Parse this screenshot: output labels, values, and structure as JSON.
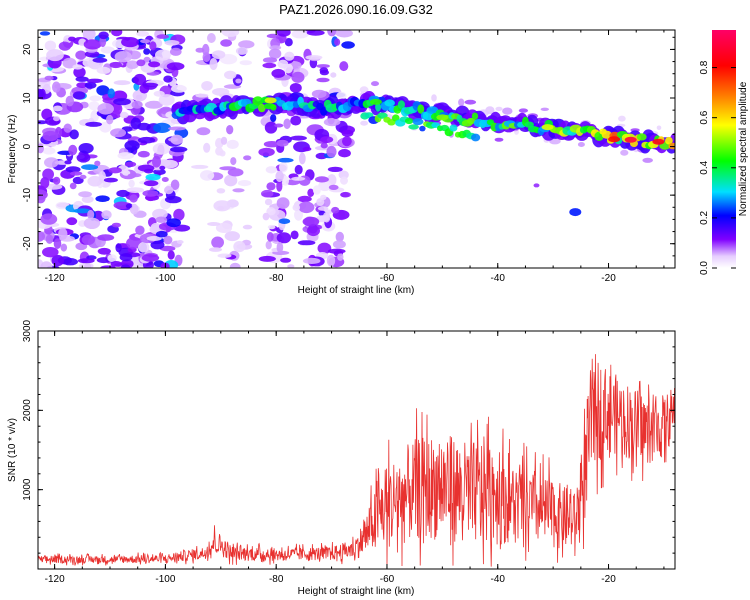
{
  "chart_data": [
    {
      "type": "heatmap",
      "title": "PAZ1.2026.090.16.09.G32",
      "xlabel": "Height of straight line (km)",
      "ylabel": "Frequency (Hz)",
      "xlim": [
        -123,
        -8
      ],
      "ylim": [
        -25,
        24
      ],
      "xticks": [
        -120,
        -100,
        -80,
        -60,
        -40,
        -20
      ],
      "xtick_labels": [
        "-120",
        "-100",
        "-80",
        "-60",
        "-40",
        "-20"
      ],
      "yticks": [
        -20,
        -10,
        0,
        10,
        20
      ],
      "ytick_labels": [
        "-20",
        "-10",
        "0",
        "10",
        "20"
      ],
      "ridge": {
        "description": "dominant signal frequency track",
        "x": [
          -98,
          -90,
          -80,
          -72,
          -62,
          -52,
          -42,
          -32,
          -22,
          -12,
          -8
        ],
        "y": [
          7,
          8,
          9,
          8,
          9,
          7,
          5,
          4,
          2.5,
          1,
          0.5
        ],
        "amplitude": [
          0.35,
          0.45,
          0.55,
          0.4,
          0.45,
          0.55,
          0.5,
          0.55,
          0.7,
          0.9,
          0.7
        ]
      },
      "noise_regions": [
        {
          "x": [
            -123,
            -97
          ],
          "amplitude": 0.18
        },
        {
          "x": [
            -94,
            -85
          ],
          "amplitude": 0.08
        },
        {
          "x": [
            -82,
            -67
          ],
          "amplitude": 0.15
        }
      ],
      "colorbar": {
        "label": "Normalized spectral amplitude",
        "range": [
          0,
          0.95
        ],
        "ticks": [
          0.0,
          0.2,
          0.4,
          0.6,
          0.8
        ],
        "tick_labels": [
          "0.0",
          "0.2",
          "0.4",
          "0.6",
          "0.8"
        ]
      }
    },
    {
      "type": "line",
      "title": "",
      "xlabel": "Height of straight line (km)",
      "ylabel": "SNR (10 * v/v)",
      "xlim": [
        -123,
        -8
      ],
      "ylim": [
        0,
        3000
      ],
      "xticks": [
        -120,
        -100,
        -80,
        -60,
        -40,
        -20
      ],
      "xtick_labels": [
        "-120",
        "-100",
        "-80",
        "-60",
        "-40",
        "-20"
      ],
      "yticks": [
        1000,
        2000,
        3000
      ],
      "ytick_labels": [
        "1000",
        "2000",
        "3000"
      ],
      "series": [
        {
          "name": "SNR",
          "color": "#e8312f",
          "envelope_x": [
            -123,
            -110,
            -100,
            -93,
            -91,
            -88,
            -80,
            -70,
            -66,
            -64,
            -62,
            -60,
            -55,
            -50,
            -45,
            -41,
            -38,
            -35,
            -30,
            -26,
            -24,
            -23,
            -20,
            -16,
            -13,
            -10,
            -8
          ],
          "envelope_mean": [
            120,
            120,
            130,
            200,
            350,
            200,
            180,
            200,
            250,
            400,
            650,
            800,
            1000,
            1050,
            950,
            1000,
            850,
            800,
            700,
            600,
            1300,
            2000,
            2000,
            1850,
            1750,
            1800,
            2000
          ],
          "envelope_amp": [
            60,
            60,
            70,
            100,
            200,
            120,
            100,
            110,
            150,
            300,
            500,
            700,
            800,
            850,
            800,
            900,
            650,
            600,
            550,
            450,
            800,
            950,
            650,
            600,
            550,
            500,
            400
          ]
        }
      ]
    }
  ],
  "colors": {
    "line": "#e8312f",
    "axis": "#000000",
    "background": "#ffffff"
  }
}
